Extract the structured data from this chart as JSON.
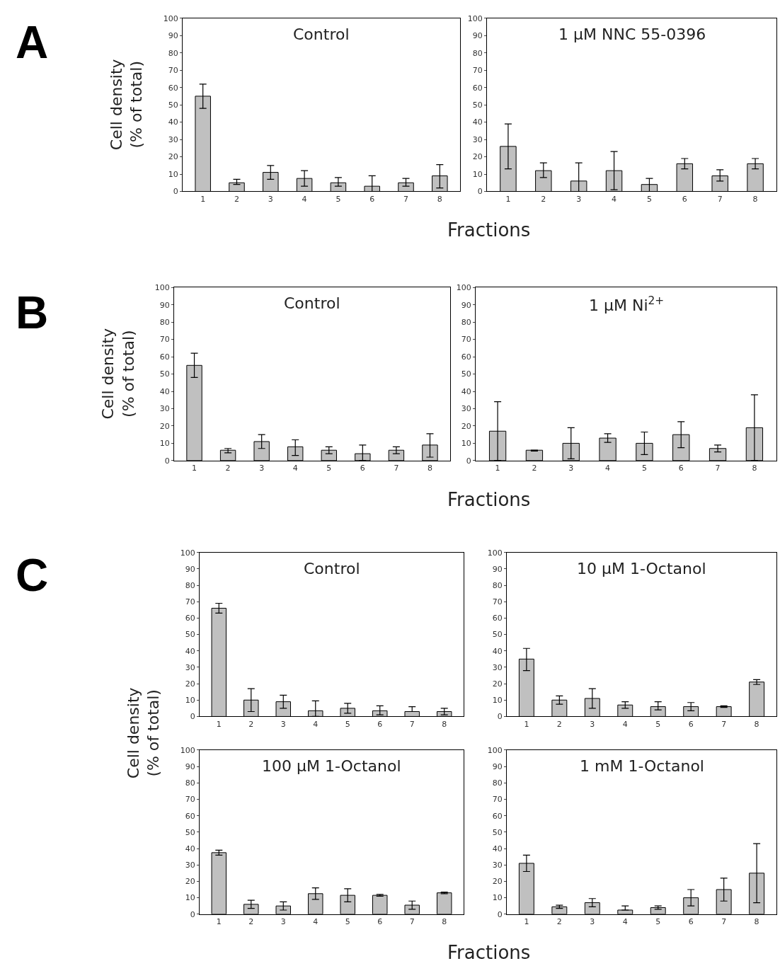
{
  "chart_data": [
    {
      "type": "bar",
      "title": "Control",
      "ylabel": "Cell density\n(% of total)",
      "annotations": [
        "A"
      ],
      "categories": [
        "1",
        "2",
        "3",
        "4",
        "5",
        "6",
        "7",
        "8"
      ],
      "values": [
        55,
        5,
        11,
        7.5,
        5,
        3,
        5,
        9
      ],
      "errors": [
        [
          48,
          62
        ],
        [
          4,
          7
        ],
        [
          7,
          15
        ],
        [
          3,
          12
        ],
        [
          3,
          8
        ],
        [
          0,
          9
        ],
        [
          3,
          7.5
        ],
        [
          2,
          15.5
        ]
      ],
      "color": "#c0c0c0",
      "ylim": [
        0,
        100
      ],
      "yticks": [
        0,
        10,
        20,
        30,
        40,
        50,
        60,
        70,
        80,
        90,
        100
      ]
    },
    {
      "type": "bar",
      "title": "1 µM NNC 55-0396",
      "xlabel": "Fractions",
      "categories": [
        "1",
        "2",
        "3",
        "4",
        "5",
        "6",
        "7",
        "8"
      ],
      "values": [
        26,
        12,
        6,
        12,
        4,
        16,
        9,
        16
      ],
      "errors": [
        [
          13,
          39
        ],
        [
          8,
          16.5
        ],
        [
          0,
          16.5
        ],
        [
          1,
          23
        ],
        [
          0,
          7.5
        ],
        [
          13,
          19
        ],
        [
          6,
          12.5
        ],
        [
          13,
          19
        ]
      ],
      "color": "#c0c0c0",
      "ylim": [
        0,
        100
      ],
      "yticks": [
        0,
        10,
        20,
        30,
        40,
        50,
        60,
        70,
        80,
        90,
        100
      ]
    },
    {
      "type": "bar",
      "title": "Control",
      "ylabel": "Cell density\n(% of total)",
      "annotations": [
        "B"
      ],
      "categories": [
        "1",
        "2",
        "3",
        "4",
        "5",
        "6",
        "7",
        "8"
      ],
      "values": [
        55,
        6,
        11,
        8,
        6,
        4,
        6,
        9
      ],
      "errors": [
        [
          48,
          62
        ],
        [
          4.5,
          7
        ],
        [
          7,
          15
        ],
        [
          3,
          12
        ],
        [
          4,
          8
        ],
        [
          0,
          9
        ],
        [
          4,
          8
        ],
        [
          2,
          15.5
        ]
      ],
      "color": "#c0c0c0",
      "ylim": [
        0,
        100
      ],
      "yticks": [
        0,
        10,
        20,
        30,
        40,
        50,
        60,
        70,
        80,
        90,
        100
      ]
    },
    {
      "type": "bar",
      "title": "1 µM Ni$^{2+}$",
      "xlabel": "Fractions",
      "categories": [
        "1",
        "2",
        "3",
        "4",
        "5",
        "6",
        "7",
        "8"
      ],
      "values": [
        17,
        6,
        10,
        13,
        10,
        15,
        7,
        19
      ],
      "errors": [
        [
          0,
          34
        ],
        [
          5.5,
          6
        ],
        [
          1,
          19
        ],
        [
          10.5,
          15.5
        ],
        [
          3.5,
          16.5
        ],
        [
          7.5,
          22.5
        ],
        [
          5,
          9
        ],
        [
          0,
          38
        ]
      ],
      "color": "#c0c0c0",
      "ylim": [
        0,
        100
      ],
      "yticks": [
        0,
        10,
        20,
        30,
        40,
        50,
        60,
        70,
        80,
        90,
        100
      ]
    },
    {
      "type": "bar",
      "title": "Control",
      "ylabel": "Cell density\n(% of total)",
      "annotations": [
        "C"
      ],
      "categories": [
        "1",
        "2",
        "3",
        "4",
        "5",
        "6",
        "7",
        "8"
      ],
      "values": [
        66,
        10,
        9,
        3.5,
        5,
        3.5,
        3,
        3
      ],
      "errors": [
        [
          63,
          69
        ],
        [
          3,
          17
        ],
        [
          5,
          13
        ],
        [
          0,
          9.5
        ],
        [
          2,
          8
        ],
        [
          1,
          6.5
        ],
        [
          3,
          6
        ],
        [
          1,
          5
        ]
      ],
      "color": "#c0c0c0",
      "ylim": [
        0,
        100
      ],
      "yticks": [
        0,
        10,
        20,
        30,
        40,
        50,
        60,
        70,
        80,
        90,
        100
      ]
    },
    {
      "type": "bar",
      "title": "10 µM 1-Octanol",
      "categories": [
        "1",
        "2",
        "3",
        "4",
        "5",
        "6",
        "7",
        "8"
      ],
      "values": [
        35,
        10,
        11,
        7,
        6,
        6,
        6,
        21
      ],
      "errors": [
        [
          28,
          41.5
        ],
        [
          7.5,
          12.5
        ],
        [
          5,
          17
        ],
        [
          5,
          9
        ],
        [
          4,
          9
        ],
        [
          3.5,
          8.5
        ],
        [
          5.5,
          6.5
        ],
        [
          19.5,
          22.5
        ]
      ],
      "color": "#c0c0c0",
      "ylim": [
        0,
        100
      ],
      "yticks": [
        0,
        10,
        20,
        30,
        40,
        50,
        60,
        70,
        80,
        90,
        100
      ]
    },
    {
      "type": "bar",
      "title": "100 µM 1-Octanol",
      "categories": [
        "1",
        "2",
        "3",
        "4",
        "5",
        "6",
        "7",
        "8"
      ],
      "values": [
        37.5,
        6,
        5,
        12.5,
        11.5,
        11.5,
        5.5,
        13
      ],
      "errors": [
        [
          36,
          39
        ],
        [
          3.5,
          8.5
        ],
        [
          2.5,
          7.5
        ],
        [
          9,
          16
        ],
        [
          7.5,
          15.5
        ],
        [
          11,
          12
        ],
        [
          3,
          8
        ],
        [
          12.5,
          13.5
        ]
      ],
      "color": "#c0c0c0",
      "ylim": [
        0,
        100
      ],
      "yticks": [
        0,
        10,
        20,
        30,
        40,
        50,
        60,
        70,
        80,
        90,
        100
      ]
    },
    {
      "type": "bar",
      "title": "1 mM 1-Octanol",
      "xlabel": "Fractions",
      "categories": [
        "1",
        "2",
        "3",
        "4",
        "5",
        "6",
        "7",
        "8"
      ],
      "values": [
        31,
        4.5,
        7,
        2.5,
        4,
        10,
        15,
        25
      ],
      "errors": [
        [
          26,
          36
        ],
        [
          3.5,
          5.5
        ],
        [
          4.5,
          9.5
        ],
        [
          2.5,
          5
        ],
        [
          3,
          5
        ],
        [
          5,
          15
        ],
        [
          8,
          22
        ],
        [
          7,
          43
        ]
      ],
      "color": "#c0c0c0",
      "ylim": [
        0,
        100
      ],
      "yticks": [
        0,
        10,
        20,
        30,
        40,
        50,
        60,
        70,
        80,
        90,
        100
      ]
    }
  ]
}
